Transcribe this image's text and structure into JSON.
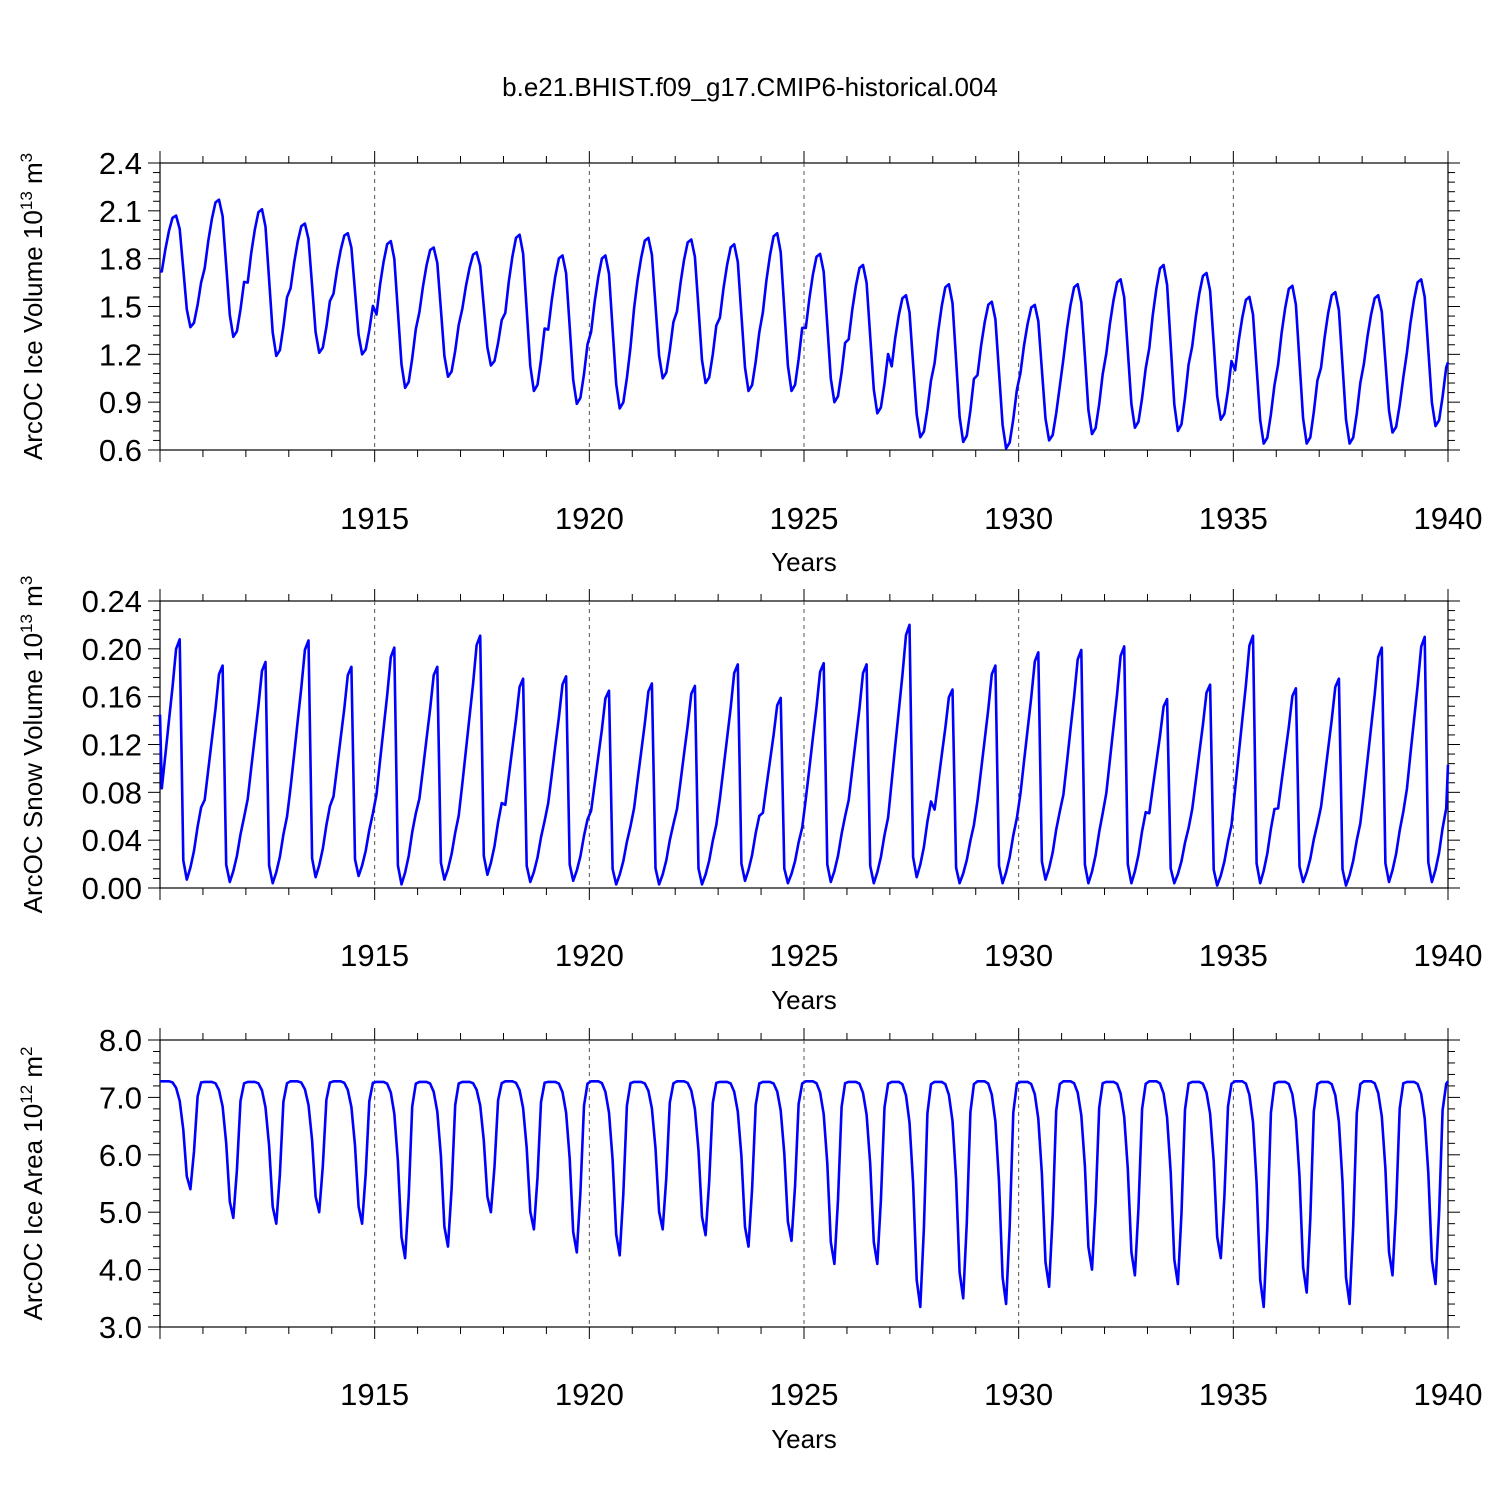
{
  "title": "b.e21.BHIST.f09_g17.CMIP6-historical.004",
  "colors": {
    "series": "#0000ff",
    "axis": "#000000",
    "grid": "#555555",
    "background": "#ffffff"
  },
  "chart_data": [
    {
      "type": "line",
      "id": "ice-volume",
      "ylabel_main": "ArcOC Ice Volume 10",
      "ylabel_sup": "13",
      "ylabel_unit": " m",
      "ylabel_unit_sup": "3",
      "xlabel": "Years",
      "xlim": [
        1910,
        1940
      ],
      "ylim": [
        0.6,
        2.4
      ],
      "xticks": [
        1915,
        1920,
        1925,
        1930,
        1935,
        1940
      ],
      "yticks": [
        "0.6",
        "0.9",
        "1.2",
        "1.5",
        "1.8",
        "2.1",
        "2.4"
      ],
      "grid_x": true,
      "annual": {
        "years": [
          1910,
          1911,
          1912,
          1913,
          1914,
          1915,
          1916,
          1917,
          1918,
          1919,
          1920,
          1921,
          1922,
          1923,
          1924,
          1925,
          1926,
          1927,
          1928,
          1929,
          1930,
          1931,
          1932,
          1933,
          1934,
          1935,
          1936,
          1937,
          1938,
          1939
        ],
        "max": [
          2.07,
          2.17,
          2.11,
          2.02,
          1.96,
          1.91,
          1.87,
          1.84,
          1.95,
          1.82,
          1.82,
          1.93,
          1.92,
          1.89,
          1.96,
          1.83,
          1.76,
          1.57,
          1.64,
          1.53,
          1.51,
          1.64,
          1.67,
          1.76,
          1.71,
          1.56,
          1.63,
          1.59,
          1.57,
          1.67
        ],
        "min": [
          1.37,
          1.31,
          1.19,
          1.21,
          1.2,
          0.99,
          1.06,
          1.13,
          0.97,
          0.89,
          0.86,
          1.05,
          1.02,
          0.97,
          0.97,
          0.9,
          0.83,
          0.68,
          0.65,
          0.61,
          0.66,
          0.7,
          0.74,
          0.72,
          0.79,
          0.64,
          0.64,
          0.64,
          0.71,
          0.75
        ]
      },
      "start_value": 1.72,
      "end_value": 1.15
    },
    {
      "type": "line",
      "id": "snow-volume",
      "ylabel_main": "ArcOC Snow Volume 10",
      "ylabel_sup": "13",
      "ylabel_unit": " m",
      "ylabel_unit_sup": "3",
      "xlabel": "Years",
      "xlim": [
        1910,
        1940
      ],
      "ylim": [
        0.0,
        0.24
      ],
      "xticks": [
        1915,
        1920,
        1925,
        1930,
        1935,
        1940
      ],
      "yticks": [
        "0.00",
        "0.04",
        "0.08",
        "0.12",
        "0.16",
        "0.20",
        "0.24"
      ],
      "grid_x": true,
      "annual": {
        "years": [
          1910,
          1911,
          1912,
          1913,
          1914,
          1915,
          1916,
          1917,
          1918,
          1919,
          1920,
          1921,
          1922,
          1923,
          1924,
          1925,
          1926,
          1927,
          1928,
          1929,
          1930,
          1931,
          1932,
          1933,
          1934,
          1935,
          1936,
          1937,
          1938,
          1939
        ],
        "max": [
          0.208,
          0.186,
          0.189,
          0.207,
          0.185,
          0.201,
          0.185,
          0.211,
          0.175,
          0.177,
          0.165,
          0.171,
          0.169,
          0.187,
          0.159,
          0.188,
          0.187,
          0.22,
          0.166,
          0.186,
          0.197,
          0.199,
          0.202,
          0.158,
          0.17,
          0.211,
          0.167,
          0.175,
          0.201,
          0.21
        ],
        "min": [
          0.007,
          0.005,
          0.004,
          0.009,
          0.01,
          0.003,
          0.007,
          0.011,
          0.005,
          0.006,
          0.003,
          0.003,
          0.003,
          0.006,
          0.004,
          0.005,
          0.004,
          0.009,
          0.004,
          0.004,
          0.007,
          0.004,
          0.004,
          0.004,
          0.002,
          0.004,
          0.005,
          0.002,
          0.005,
          0.005
        ]
      },
      "start_value": 0.145,
      "end_value": 0.103
    },
    {
      "type": "line",
      "id": "ice-area",
      "ylabel_main": "ArcOC Ice Area 10",
      "ylabel_sup": "12",
      "ylabel_unit": " m",
      "ylabel_unit_sup": "2",
      "xlabel": "Years",
      "xlim": [
        1910,
        1940
      ],
      "ylim": [
        3.0,
        8.0
      ],
      "xticks": [
        1915,
        1920,
        1925,
        1930,
        1935,
        1940
      ],
      "yticks": [
        "3.0",
        "4.0",
        "5.0",
        "6.0",
        "7.0",
        "8.0"
      ],
      "grid_x": true,
      "annual": {
        "years": [
          1910,
          1911,
          1912,
          1913,
          1914,
          1915,
          1916,
          1917,
          1918,
          1919,
          1920,
          1921,
          1922,
          1923,
          1924,
          1925,
          1926,
          1927,
          1928,
          1929,
          1930,
          1931,
          1932,
          1933,
          1934,
          1935,
          1936,
          1937,
          1938,
          1939
        ],
        "max": [
          7.28,
          7.27,
          7.27,
          7.28,
          7.28,
          7.27,
          7.27,
          7.27,
          7.28,
          7.27,
          7.28,
          7.27,
          7.28,
          7.27,
          7.27,
          7.28,
          7.27,
          7.27,
          7.27,
          7.28,
          7.27,
          7.28,
          7.27,
          7.28,
          7.27,
          7.28,
          7.27,
          7.27,
          7.28,
          7.27
        ],
        "min": [
          5.4,
          4.9,
          4.8,
          5.0,
          4.8,
          4.2,
          4.4,
          5.0,
          4.7,
          4.3,
          4.25,
          4.7,
          4.6,
          4.4,
          4.5,
          4.1,
          4.1,
          3.35,
          3.5,
          3.4,
          3.7,
          4.0,
          3.9,
          3.75,
          4.2,
          3.35,
          3.6,
          3.4,
          3.9,
          3.75
        ]
      },
      "start_value": 7.28,
      "end_value": 7.28
    }
  ]
}
